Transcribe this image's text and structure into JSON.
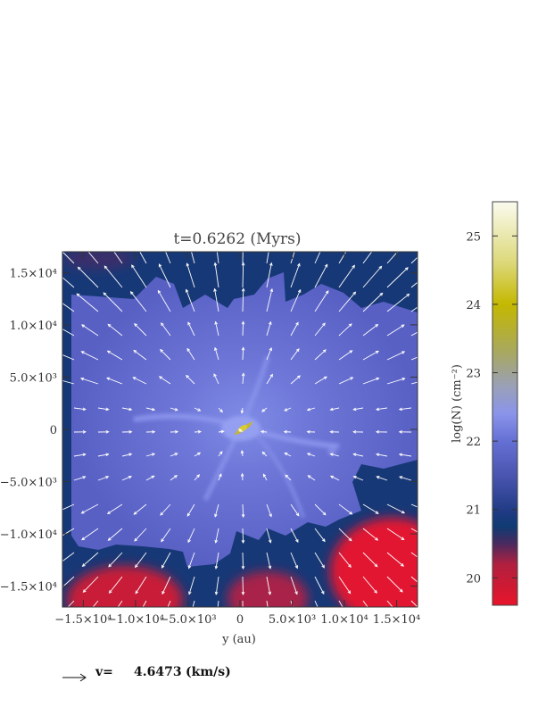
{
  "chart_data": {
    "type": "heatmap",
    "title": "t=0.6262 (Myrs)",
    "xlabel": "y (au)",
    "ylabel": "",
    "xlim": [
      -17000,
      17000
    ],
    "ylim": [
      -17000,
      17000
    ],
    "xticks": [
      {
        "value": -15000,
        "label": "−1.5×10⁴"
      },
      {
        "value": -10000,
        "label": "−1.0×10⁴"
      },
      {
        "value": -5000,
        "label": "−5.0×10³"
      },
      {
        "value": 0,
        "label": "0"
      },
      {
        "value": 5000,
        "label": "5.0×10³"
      },
      {
        "value": 10000,
        "label": "1.0×10⁴"
      },
      {
        "value": 15000,
        "label": "1.5×10⁴"
      }
    ],
    "yticks": [
      {
        "value": 15000,
        "label": "1.5×10⁴"
      },
      {
        "value": 10000,
        "label": "1.0×10⁴"
      },
      {
        "value": 5000,
        "label": "5.0×10³"
      },
      {
        "value": 0,
        "label": "0"
      },
      {
        "value": -5000,
        "label": "−5.0×10³"
      },
      {
        "value": -10000,
        "label": "−1.0×10⁴"
      },
      {
        "value": -15000,
        "label": "−1.5×10⁴"
      }
    ],
    "colorbar": {
      "label": "log(N) (cm⁻²)",
      "range": [
        19.6,
        25.5
      ],
      "ticks": [
        {
          "value": 20,
          "label": "20"
        },
        {
          "value": 21,
          "label": "21"
        },
        {
          "value": 22,
          "label": "22"
        },
        {
          "value": 23,
          "label": "23"
        },
        {
          "value": 24,
          "label": "24"
        },
        {
          "value": 25,
          "label": "25"
        }
      ],
      "stops": [
        {
          "value": 19.6,
          "color": "#e8142a"
        },
        {
          "value": 20.2,
          "color": "#b0203f"
        },
        {
          "value": 20.5,
          "color": "#4a2a5e"
        },
        {
          "value": 20.75,
          "color": "#0f3b73"
        },
        {
          "value": 20.95,
          "color": "#1e3a82"
        },
        {
          "value": 21.5,
          "color": "#4a55b0"
        },
        {
          "value": 22.0,
          "color": "#6570d4"
        },
        {
          "value": 22.4,
          "color": "#8a94ea"
        },
        {
          "value": 22.8,
          "color": "#9aa0b8"
        },
        {
          "value": 23.3,
          "color": "#a8a860"
        },
        {
          "value": 24.0,
          "color": "#c4b800"
        },
        {
          "value": 24.6,
          "color": "#dcd878"
        },
        {
          "value": 25.5,
          "color": "#fbfbef"
        }
      ]
    },
    "velocity_key": {
      "label": "v=",
      "value": "4.6473",
      "unit": "(km/s)"
    }
  }
}
